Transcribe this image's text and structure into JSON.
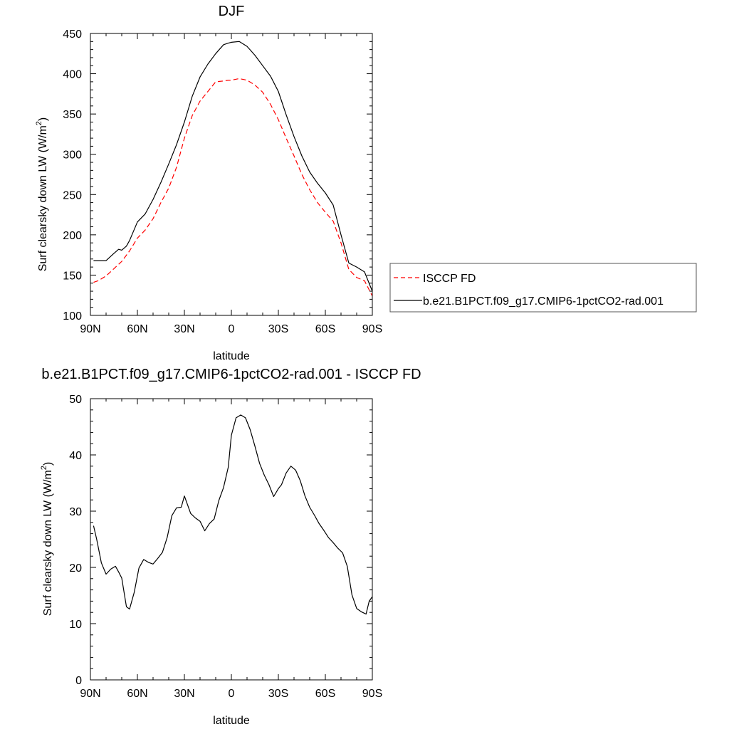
{
  "chart_data": [
    {
      "type": "line",
      "title": "DJF",
      "xlabel": "latitude",
      "ylabel_main": "Surf clearsky down LW (W/m",
      "ylabel_sup": "2",
      "ylabel_tail": ")",
      "xlim": [
        90,
        -90
      ],
      "ylim": [
        100,
        450
      ],
      "xticks": [
        90,
        60,
        30,
        0,
        -30,
        -60,
        -90
      ],
      "xtick_labels": [
        "90N",
        "60N",
        "30N",
        "0",
        "30S",
        "60S",
        "90S"
      ],
      "yticks": [
        100,
        150,
        200,
        250,
        300,
        350,
        400,
        450
      ],
      "ytick_labels": [
        "100",
        "150",
        "200",
        "250",
        "300",
        "350",
        "400",
        "450"
      ],
      "legend_position": "right",
      "series": [
        {
          "name": "ISCCP FD",
          "color": "#ff0000",
          "dash": "dashed",
          "x": [
            88,
            85,
            80,
            75,
            70,
            65,
            60,
            55,
            50,
            45,
            40,
            35,
            30,
            25,
            20,
            15,
            10,
            5,
            2,
            0,
            -5,
            -10,
            -15,
            -20,
            -25,
            -30,
            -35,
            -40,
            -45,
            -50,
            -55,
            -60,
            -65,
            -70,
            -75,
            -80,
            -85,
            -90
          ],
          "values": [
            141,
            143,
            149,
            158,
            167,
            180,
            196,
            206,
            220,
            240,
            258,
            284,
            320,
            348,
            366,
            378,
            390,
            391,
            392,
            392,
            394,
            392,
            386,
            377,
            362,
            343,
            320,
            298,
            275,
            256,
            240,
            228,
            217,
            190,
            157,
            147,
            143,
            124
          ]
        },
        {
          "name": "b.e21.B1PCT.f09_g17.CMIP6-1pctCO2-rad.001",
          "color": "#000000",
          "dash": "solid",
          "x": [
            88,
            85,
            80,
            75,
            72,
            70,
            67,
            65,
            60,
            55,
            50,
            45,
            40,
            35,
            30,
            25,
            20,
            15,
            10,
            5,
            2,
            0,
            -5,
            -10,
            -15,
            -20,
            -25,
            -30,
            -35,
            -40,
            -45,
            -50,
            -55,
            -60,
            -65,
            -70,
            -75,
            -80,
            -85,
            -90
          ],
          "values": [
            168,
            168,
            168,
            177,
            182,
            181,
            186,
            193,
            216,
            226,
            244,
            265,
            288,
            312,
            340,
            372,
            396,
            412,
            425,
            436,
            438,
            439,
            440,
            434,
            423,
            410,
            397,
            378,
            349,
            322,
            298,
            278,
            264,
            252,
            237,
            200,
            165,
            160,
            154,
            130
          ]
        }
      ]
    },
    {
      "type": "line",
      "title": "b.e21.B1PCT.f09_g17.CMIP6-1pctCO2-rad.001 - ISCCP FD",
      "xlabel": "latitude",
      "ylabel_main": "Surf clearsky down LW (W/m",
      "ylabel_sup": "2",
      "ylabel_tail": ")",
      "xlim": [
        90,
        -90
      ],
      "ylim": [
        0,
        50
      ],
      "xticks": [
        90,
        60,
        30,
        0,
        -30,
        -60,
        -90
      ],
      "xtick_labels": [
        "90N",
        "60N",
        "30N",
        "0",
        "30S",
        "60S",
        "90S"
      ],
      "yticks": [
        0,
        10,
        20,
        30,
        40,
        50
      ],
      "ytick_labels": [
        "0",
        "10",
        "20",
        "30",
        "40",
        "50"
      ],
      "series": [
        {
          "color": "#000000",
          "dash": "solid",
          "x": [
            88,
            86,
            83,
            80,
            77,
            74,
            72,
            70,
            67,
            65,
            62,
            59,
            56,
            53,
            50,
            47,
            44,
            41,
            38,
            35,
            32,
            30,
            26,
            23,
            20,
            17,
            14,
            11,
            8,
            5,
            2,
            0,
            -3,
            -6,
            -9,
            -12,
            -15,
            -18,
            -21,
            -24,
            -27,
            -30,
            -32,
            -35,
            -38,
            -41,
            -44,
            -47,
            -50,
            -53,
            -56,
            -59,
            -62,
            -65,
            -68,
            -71,
            -74,
            -77,
            -80,
            -83,
            -86,
            -88,
            -90
          ],
          "values": [
            27.4,
            25.0,
            20.8,
            18.8,
            19.7,
            20.2,
            19.2,
            18.1,
            13.0,
            12.6,
            15.6,
            19.9,
            21.4,
            20.9,
            20.6,
            21.6,
            22.7,
            25.3,
            29.2,
            30.6,
            30.7,
            32.7,
            29.6,
            28.8,
            28.2,
            26.5,
            27.8,
            28.6,
            31.9,
            34.2,
            37.8,
            43.5,
            46.6,
            47.1,
            46.6,
            44.5,
            41.6,
            38.5,
            36.4,
            34.7,
            32.6,
            34.0,
            34.7,
            36.8,
            38.0,
            37.3,
            35.4,
            32.7,
            30.7,
            29.3,
            27.8,
            26.6,
            25.3,
            24.4,
            23.4,
            22.6,
            20.2,
            15.1,
            12.7,
            12.1,
            11.7,
            14.0,
            14.8
          ]
        }
      ]
    }
  ]
}
